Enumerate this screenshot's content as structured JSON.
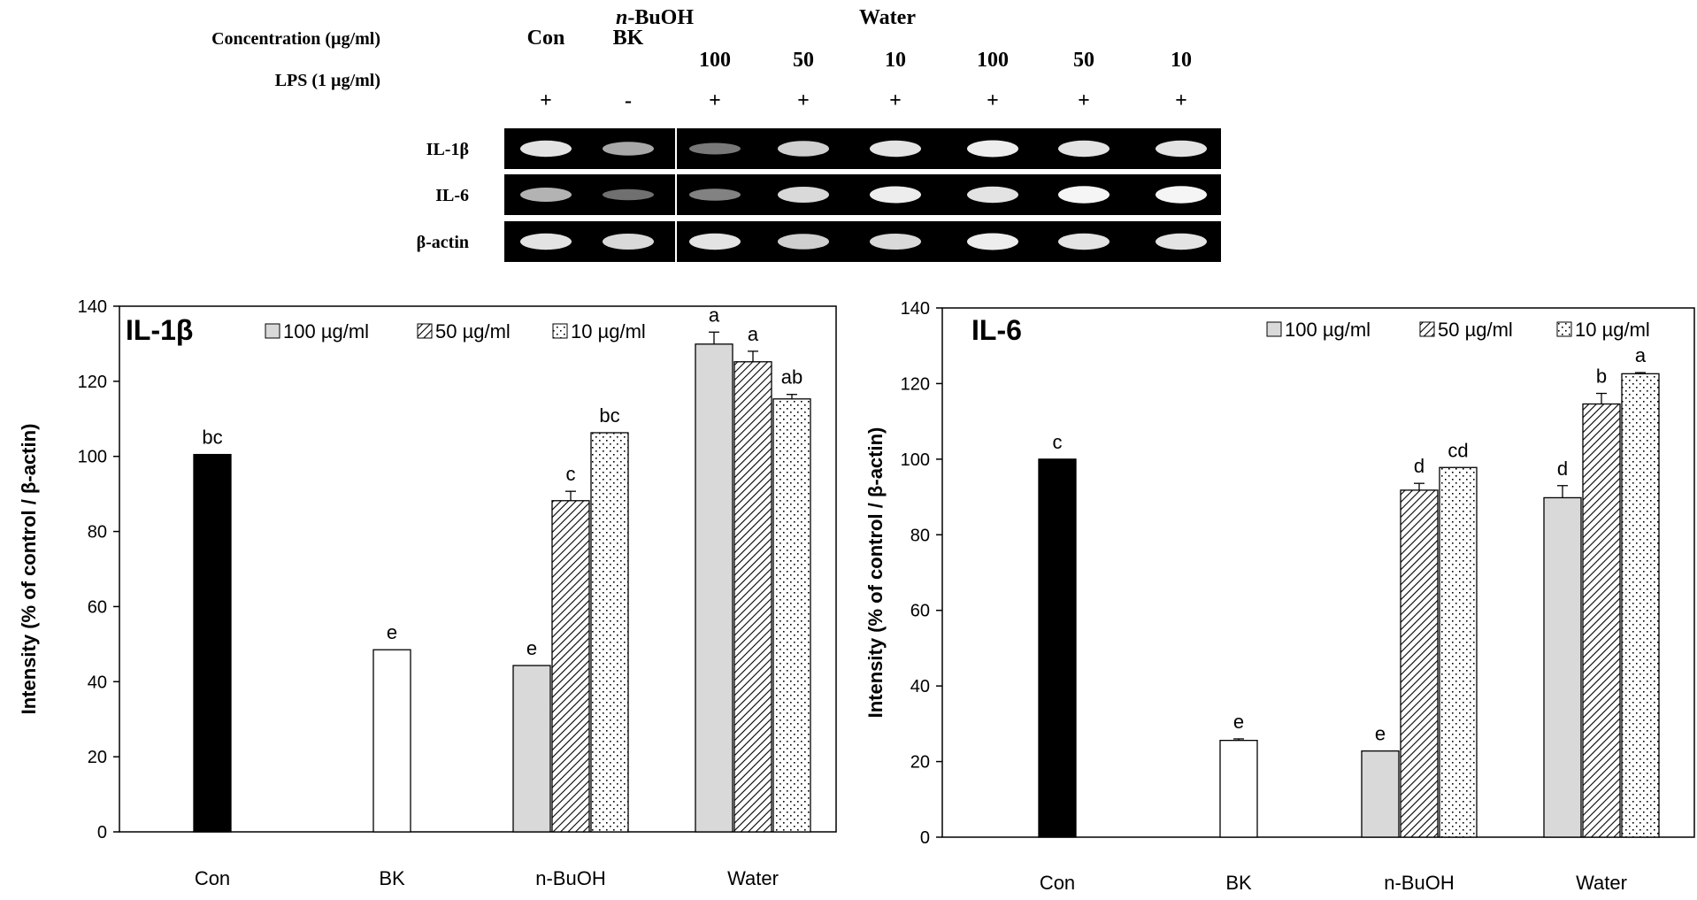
{
  "gel": {
    "header_concentration": "Concentration (µg/ml)",
    "header_lps": "LPS (1 µg/ml)",
    "group_nbuoh_prefix": "n",
    "group_nbuoh_suffix": "-BuOH",
    "group_water": "Water",
    "lanes": [
      {
        "label": "Con",
        "lps": "+"
      },
      {
        "label": "BK",
        "lps": "-"
      },
      {
        "label": "100",
        "lps": "+"
      },
      {
        "label": "50",
        "lps": "+"
      },
      {
        "label": "10",
        "lps": "+"
      },
      {
        "label": "100",
        "lps": "+"
      },
      {
        "label": "50",
        "lps": "+"
      },
      {
        "label": "10",
        "lps": "+"
      }
    ],
    "rows": [
      {
        "label": "IL-1β",
        "band_intensity": [
          0.85,
          0.55,
          0.3,
          0.75,
          0.85,
          0.9,
          0.85,
          0.85
        ]
      },
      {
        "label": "IL-6",
        "band_intensity": [
          0.6,
          0.25,
          0.35,
          0.8,
          0.9,
          0.85,
          0.95,
          0.95
        ]
      },
      {
        "label": "β-actin",
        "band_intensity": [
          0.85,
          0.8,
          0.85,
          0.75,
          0.8,
          0.9,
          0.85,
          0.85
        ]
      }
    ]
  },
  "chart_data": [
    {
      "type": "bar",
      "title": "IL-1β",
      "ylabel": "Intensity (% of control / β-actin)",
      "xlabel": "",
      "ylim": [
        0,
        140
      ],
      "yticks": [
        0,
        20,
        40,
        60,
        80,
        100,
        120,
        140
      ],
      "categories": [
        "Con",
        "BK",
        "n-BuOH",
        "Water"
      ],
      "legend": [
        "100 µg/ml",
        "50 µg/ml",
        "10 µg/ml"
      ],
      "legend_position": "top",
      "control_bars": [
        {
          "category": "Con",
          "value": 100.5,
          "error": 0,
          "label": "bc",
          "style": "black"
        },
        {
          "category": "BK",
          "value": 48.5,
          "error": 0,
          "label": "e",
          "style": "white"
        }
      ],
      "series": [
        {
          "name": "100 µg/ml",
          "style": "gray",
          "values": [
            null,
            null,
            44.3,
            129.9
          ],
          "errors": [
            0,
            0,
            0,
            3.2
          ],
          "labels": [
            "",
            "",
            "e",
            "a"
          ]
        },
        {
          "name": "50 µg/ml",
          "style": "hatch",
          "values": [
            null,
            null,
            88.2,
            125.2
          ],
          "errors": [
            0,
            0,
            2.5,
            2.8
          ],
          "labels": [
            "",
            "",
            "c",
            "a"
          ]
        },
        {
          "name": "10 µg/ml",
          "style": "dots",
          "values": [
            null,
            null,
            106.3,
            115.3
          ],
          "errors": [
            0,
            0,
            0,
            1.2
          ],
          "labels": [
            "",
            "",
            "bc",
            "ab"
          ]
        }
      ]
    },
    {
      "type": "bar",
      "title": "IL-6",
      "ylabel": "Intensity (% of control / β-actin)",
      "xlabel": "",
      "ylim": [
        0,
        140
      ],
      "yticks": [
        0,
        20,
        40,
        60,
        80,
        100,
        120,
        140
      ],
      "categories": [
        "Con",
        "BK",
        "n-BuOH",
        "Water"
      ],
      "legend": [
        "100 µg/ml",
        "50 µg/ml",
        "10 µg/ml"
      ],
      "legend_position": "top",
      "control_bars": [
        {
          "category": "Con",
          "value": 100,
          "error": 0,
          "label": "c",
          "style": "black"
        },
        {
          "category": "BK",
          "value": 25.6,
          "error": 0.4,
          "label": "e",
          "style": "white"
        }
      ],
      "series": [
        {
          "name": "100 µg/ml",
          "style": "gray",
          "values": [
            null,
            null,
            22.8,
            89.8
          ],
          "errors": [
            0,
            0,
            0,
            3.2
          ],
          "labels": [
            "",
            "",
            "e",
            "d"
          ]
        },
        {
          "name": "50 µg/ml",
          "style": "hatch",
          "values": [
            null,
            null,
            91.8,
            114.6
          ],
          "errors": [
            0,
            0,
            1.8,
            2.8
          ],
          "labels": [
            "",
            "",
            "d",
            "b"
          ]
        },
        {
          "name": "10 µg/ml",
          "style": "dots",
          "values": [
            null,
            null,
            97.8,
            122.6
          ],
          "errors": [
            0,
            0,
            0,
            0.3
          ],
          "labels": [
            "",
            "",
            "cd",
            "a"
          ]
        }
      ]
    }
  ],
  "colors": {
    "black_bar": "#000000",
    "gray_bar": "#d9d9d9",
    "white_bar": "#ffffff",
    "axis": "#000000",
    "gel_background": "#000000",
    "band": "#ffffff",
    "text": "#000000"
  }
}
